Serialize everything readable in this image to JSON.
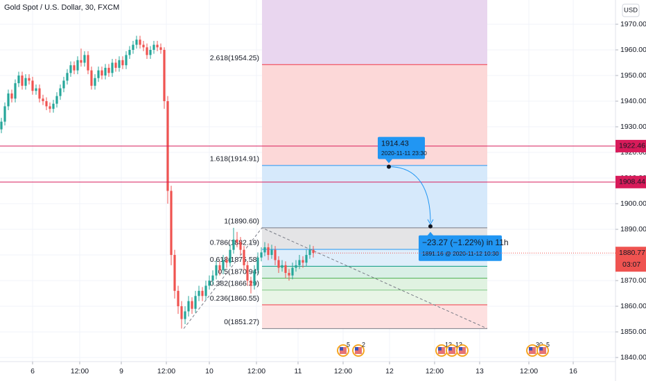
{
  "chart_data": {
    "type": "candlestick",
    "title": "Gold Spot / U.S. Dollar, 30, FXCM",
    "currency": "USD",
    "up_color": "#26a69a",
    "down_color": "#ef5350",
    "ylim": [
      1838.4,
      1979.46
    ],
    "yticks": [
      {
        "value": 1840,
        "label": "1840.00"
      },
      {
        "value": 1850,
        "label": "1850.00"
      },
      {
        "value": 1860,
        "label": "1860.00"
      },
      {
        "value": 1870,
        "label": "1870.00"
      },
      {
        "value": 1880,
        "label": "1880.00"
      },
      {
        "value": 1890,
        "label": "1890.00"
      },
      {
        "value": 1900,
        "label": "1900.00"
      },
      {
        "value": 1910,
        "label": "1910.00"
      },
      {
        "value": 1920,
        "label": "1920.00"
      },
      {
        "value": 1930,
        "label": "1930.00"
      },
      {
        "value": 1940,
        "label": "1940.00"
      },
      {
        "value": 1950,
        "label": "1950.00"
      },
      {
        "value": 1960,
        "label": "1960.00"
      },
      {
        "value": 1970,
        "label": "1970.00"
      }
    ],
    "xlim": [
      -0.4,
      177.2
    ],
    "xticks": [
      {
        "value": 9,
        "label": "6"
      },
      {
        "value": 22.6,
        "label": "12:00"
      },
      {
        "value": 34.6,
        "label": "9"
      },
      {
        "value": 47.6,
        "label": "12:00"
      },
      {
        "value": 60,
        "label": "10"
      },
      {
        "value": 73.6,
        "label": "12:00"
      },
      {
        "value": 85.6,
        "label": "11"
      },
      {
        "value": 98.6,
        "label": "12:00"
      },
      {
        "value": 112,
        "label": "12"
      },
      {
        "value": 125,
        "label": "12:00"
      },
      {
        "value": 138,
        "label": "13"
      },
      {
        "value": 152.2,
        "label": "12:00"
      },
      {
        "value": 165,
        "label": "16"
      }
    ],
    "grid": true,
    "candles": [
      [
        1929,
        1933.5,
        1927.5,
        1932
      ],
      [
        1932,
        1939.5,
        1930.5,
        1938
      ],
      [
        1938,
        1944.5,
        1936.5,
        1943
      ],
      [
        1943,
        1944.5,
        1939.5,
        1941
      ],
      [
        1941,
        1948.5,
        1939.5,
        1947
      ],
      [
        1947,
        1951.5,
        1945.5,
        1950
      ],
      [
        1950,
        1951.5,
        1944.5,
        1946
      ],
      [
        1946,
        1950.5,
        1944.5,
        1949
      ],
      [
        1949,
        1950.5,
        1946.5,
        1948
      ],
      [
        1948,
        1949.5,
        1942.5,
        1944
      ],
      [
        1944,
        1946.5,
        1942.5,
        1945
      ],
      [
        1945,
        1946.5,
        1939.5,
        1941
      ],
      [
        1941,
        1942.5,
        1938.5,
        1940
      ],
      [
        1940,
        1941.5,
        1936.5,
        1938
      ],
      [
        1938,
        1939.5,
        1935.5,
        1937
      ],
      [
        1937,
        1940.5,
        1935.5,
        1939
      ],
      [
        1939,
        1943.5,
        1937.5,
        1942
      ],
      [
        1942,
        1946.5,
        1940.5,
        1945
      ],
      [
        1945,
        1949.5,
        1943.5,
        1948
      ],
      [
        1948,
        1952.5,
        1946.5,
        1951
      ],
      [
        1951,
        1955.5,
        1949.5,
        1954
      ],
      [
        1954,
        1955.5,
        1950.5,
        1952
      ],
      [
        1952,
        1957.5,
        1950.5,
        1956
      ],
      [
        1956,
        1960.5,
        1953.5,
        1955
      ],
      [
        1955,
        1959.5,
        1953.5,
        1958
      ],
      [
        1958,
        1959.5,
        1950.5,
        1952
      ],
      [
        1952,
        1953.5,
        1944.5,
        1946
      ],
      [
        1946,
        1950.5,
        1944.5,
        1949
      ],
      [
        1949,
        1953.5,
        1947.5,
        1952
      ],
      [
        1952,
        1953.5,
        1948.5,
        1950
      ],
      [
        1950,
        1954.5,
        1948.5,
        1953
      ],
      [
        1953,
        1954.5,
        1949.5,
        1951
      ],
      [
        1951,
        1956.5,
        1949.5,
        1955
      ],
      [
        1955,
        1956.5,
        1951.5,
        1953
      ],
      [
        1953,
        1957.5,
        1951.5,
        1956
      ],
      [
        1956,
        1957.5,
        1952.5,
        1954
      ],
      [
        1954,
        1959.5,
        1952.5,
        1958
      ],
      [
        1958,
        1961.5,
        1956.5,
        1960
      ],
      [
        1960,
        1963.5,
        1958.5,
        1962
      ],
      [
        1962,
        1965.5,
        1960.5,
        1964
      ],
      [
        1964,
        1965.5,
        1960.5,
        1962
      ],
      [
        1962,
        1963.5,
        1959.5,
        1961
      ],
      [
        1961,
        1962.5,
        1956.5,
        1958
      ],
      [
        1958,
        1961.5,
        1956.5,
        1960
      ],
      [
        1960,
        1963.5,
        1958.5,
        1962
      ],
      [
        1962,
        1963.5,
        1959.5,
        1961
      ],
      [
        1961,
        1962.5,
        1958.5,
        1960
      ],
      [
        1960,
        1961,
        1937,
        1940
      ],
      [
        1940,
        1942,
        1900,
        1905
      ],
      [
        1905,
        1907,
        1876,
        1880
      ],
      [
        1880,
        1882,
        1863,
        1866
      ],
      [
        1866,
        1868,
        1857,
        1860
      ],
      [
        1860,
        1862,
        1851.27,
        1855
      ],
      [
        1855,
        1860,
        1853,
        1858
      ],
      [
        1858,
        1864,
        1856,
        1862
      ],
      [
        1862,
        1863.5,
        1857,
        1859
      ],
      [
        1859,
        1866,
        1857.5,
        1864
      ],
      [
        1864,
        1868,
        1862,
        1866
      ],
      [
        1866,
        1867.5,
        1862,
        1864
      ],
      [
        1864,
        1870,
        1862.5,
        1868
      ],
      [
        1868,
        1872,
        1866.5,
        1870
      ],
      [
        1870,
        1874,
        1868.5,
        1872
      ],
      [
        1872,
        1878,
        1870.5,
        1876
      ],
      [
        1876,
        1877.5,
        1872,
        1874
      ],
      [
        1874,
        1880,
        1872.5,
        1878
      ],
      [
        1878,
        1879.5,
        1875,
        1877
      ],
      [
        1877,
        1884,
        1875.5,
        1882
      ],
      [
        1882,
        1890.6,
        1880.5,
        1886
      ],
      [
        1886,
        1889,
        1883,
        1885
      ],
      [
        1885,
        1887,
        1880,
        1882
      ],
      [
        1882,
        1883.5,
        1874,
        1876
      ],
      [
        1876,
        1877.5,
        1868,
        1870
      ],
      [
        1870,
        1871.5,
        1865,
        1868
      ],
      [
        1868,
        1876,
        1866.5,
        1874
      ],
      [
        1874,
        1881,
        1872.5,
        1879
      ],
      [
        1879,
        1883,
        1877.5,
        1881
      ],
      [
        1881,
        1885,
        1879.5,
        1883
      ],
      [
        1883,
        1884.5,
        1878,
        1880
      ],
      [
        1880,
        1884,
        1878.5,
        1882
      ],
      [
        1882,
        1883.5,
        1876,
        1878
      ],
      [
        1878,
        1879.5,
        1873,
        1875
      ],
      [
        1875,
        1878,
        1873.5,
        1876
      ],
      [
        1876,
        1877.5,
        1871,
        1873
      ],
      [
        1873,
        1874.5,
        1870,
        1872
      ],
      [
        1872,
        1877,
        1870.5,
        1875
      ],
      [
        1875,
        1878,
        1873.5,
        1876
      ],
      [
        1876,
        1880,
        1874.5,
        1878
      ],
      [
        1878,
        1879.5,
        1875,
        1877
      ],
      [
        1877,
        1882,
        1875.5,
        1880
      ],
      [
        1880,
        1884,
        1878.5,
        1882
      ],
      [
        1882,
        1883.5,
        1879,
        1880.77
      ]
    ],
    "fib": {
      "x_range": [
        75.2,
        140.2
      ],
      "levels": [
        {
          "label": "2.618(1954.25)",
          "value": 1954.25,
          "color": "#f23645",
          "fill": "#e9d6ef"
        },
        {
          "label": "1.618(1914.91)",
          "value": 1914.91,
          "color": "#2196f3",
          "fill": "#fcd8d8"
        },
        {
          "label": "1(1890.60)",
          "value": 1890.6,
          "color": "#787b86",
          "fill": "#d6e9fb"
        },
        {
          "label": "0.786(1882.19)",
          "value": 1882.19,
          "color": "#2196f3",
          "fill": "#e4e4e6"
        },
        {
          "label": "0.618(1875.58)",
          "value": 1875.58,
          "color": "#089981",
          "fill": "#dfeefb"
        },
        {
          "label": "0.5(1870.94)",
          "value": 1870.94,
          "color": "#4caf50",
          "fill": "#d9efe6"
        },
        {
          "label": "0.382(1866.29)",
          "value": 1866.29,
          "color": "#81c784",
          "fill": "#e0f2e1"
        },
        {
          "label": "0.236(1860.55)",
          "value": 1860.55,
          "color": "#f23645",
          "fill": "#e8f5e6"
        },
        {
          "label": "0(1851.27)",
          "value": 1851.27,
          "color": "#787b86",
          "fill": "#fde0e0"
        }
      ]
    },
    "trend": {
      "x": [
        52.6,
        75.2,
        140.2
      ],
      "y": [
        1851.27,
        1890.6,
        1851.27
      ]
    },
    "hlines": {
      "values": [
        1922.46,
        1908.44
      ],
      "color": "#d81b5a"
    },
    "last_price": 1880.77,
    "countdown": "03:07",
    "projection": {
      "color": "#2196f3",
      "start": {
        "x": 111.8,
        "y": 1914.43,
        "date": "2020-11-11 23:30"
      },
      "end": {
        "x": 123.8,
        "y": 1891.16,
        "change": "−23.27 (−1.22%) in 11h",
        "detail": "1891.16 @ 2020-11-12  10:30"
      }
    },
    "events": [
      {
        "x": 98.6,
        "label": "5"
      },
      {
        "x": 103,
        "label": "2"
      },
      {
        "x": 127,
        "label": "13"
      },
      {
        "x": 130,
        "label": "13"
      },
      {
        "x": 133
      },
      {
        "x": 153.2,
        "label": "30"
      },
      {
        "x": 156.2,
        "label": "5"
      }
    ]
  }
}
